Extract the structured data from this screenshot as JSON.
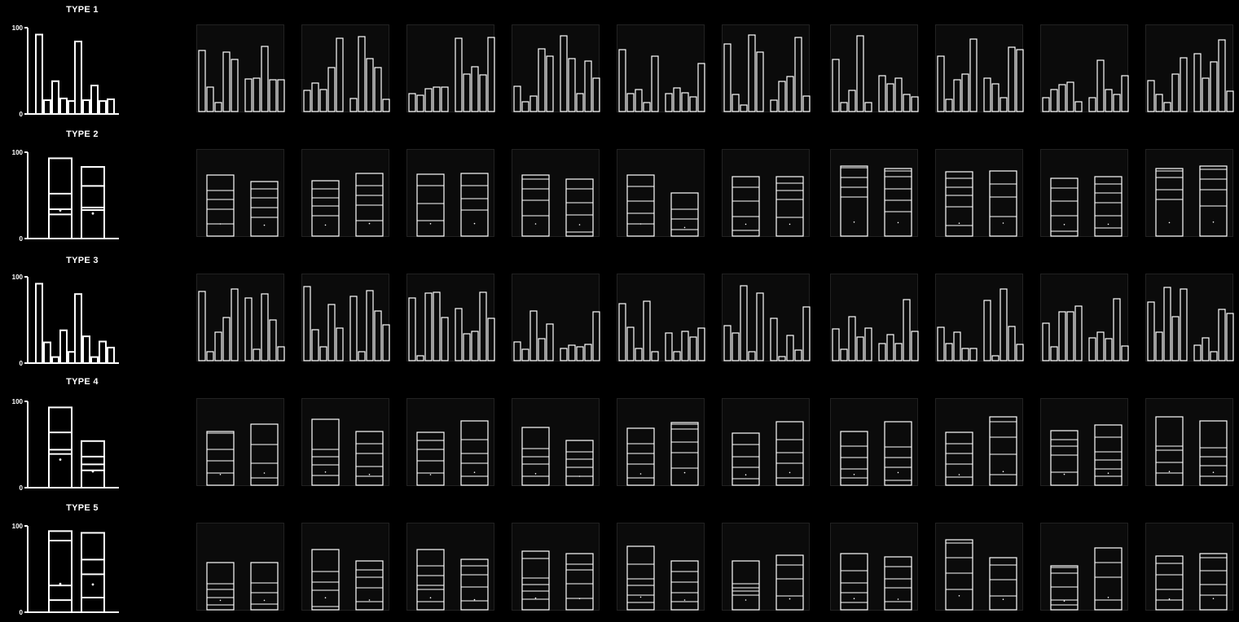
{
  "chart_data": [
    {
      "type": "bar",
      "title": "TYPE 1",
      "ylim": [
        0,
        100
      ],
      "ytick_labels": [
        "0",
        "100"
      ],
      "reference": [
        92,
        16,
        38,
        18,
        15,
        84,
        16,
        33,
        15,
        17
      ],
      "samples": [
        [
          75,
          30,
          11,
          73,
          64,
          40,
          41,
          80,
          39,
          39
        ],
        [
          26,
          35,
          27,
          54,
          90,
          16,
          92,
          65,
          54,
          15
        ],
        [
          22,
          20,
          28,
          30,
          30,
          90,
          46,
          55,
          45,
          91
        ],
        [
          31,
          12,
          19,
          77,
          68,
          93,
          65,
          22,
          62,
          41
        ],
        [
          76,
          22,
          27,
          11,
          68,
          22,
          29,
          23,
          18,
          59
        ],
        [
          83,
          21,
          8,
          94,
          73,
          14,
          37,
          43,
          91,
          19
        ],
        [
          64,
          11,
          26,
          93,
          11,
          44,
          34,
          41,
          21,
          18
        ],
        [
          68,
          15,
          39,
          46,
          89,
          41,
          34,
          17,
          79,
          76
        ],
        [
          17,
          27,
          33,
          36,
          12,
          17,
          63,
          27,
          21,
          44
        ],
        [
          38,
          21,
          11,
          46,
          66,
          71,
          41,
          61,
          88,
          25
        ]
      ]
    },
    {
      "type": "stacked-bar",
      "title": "TYPE 2",
      "ylim": [
        0,
        100
      ],
      "ytick_labels": [
        "0",
        "100"
      ],
      "reference": [
        [
          28,
          34,
          52,
          93
        ],
        [
          33,
          36,
          61,
          83
        ]
      ],
      "samples": [
        [
          [
            15,
            33,
            45,
            56,
            75
          ],
          [
            23,
            35,
            47,
            58,
            67
          ]
        ],
        [
          [
            25,
            37,
            47,
            58,
            68
          ],
          [
            19,
            38,
            50,
            62,
            77
          ]
        ],
        [
          [
            19,
            40,
            62,
            76
          ],
          [
            32,
            46,
            62,
            77
          ]
        ],
        [
          [
            25,
            44,
            58,
            70,
            75
          ],
          [
            5,
            26,
            41,
            58,
            70
          ]
        ],
        [
          [
            15,
            28,
            43,
            61,
            75
          ],
          [
            8,
            21,
            33,
            53
          ]
        ],
        [
          [
            7,
            24,
            43,
            60,
            73
          ],
          [
            23,
            45,
            56,
            65,
            73
          ]
        ],
        [
          [
            48,
            60,
            72,
            84,
            86
          ],
          [
            30,
            44,
            58,
            73,
            80,
            83
          ]
        ],
        [
          [
            13,
            36,
            50,
            60,
            71,
            79
          ],
          [
            24,
            48,
            64,
            80
          ]
        ],
        [
          [
            6,
            25,
            43,
            59,
            71
          ],
          [
            10,
            25,
            41,
            53,
            64,
            73
          ]
        ],
        [
          [
            45,
            57,
            72,
            80,
            83
          ],
          [
            37,
            57,
            70,
            82,
            86
          ]
        ]
      ]
    },
    {
      "type": "bar",
      "title": "TYPE 3",
      "ylim": [
        0,
        100
      ],
      "ytick_labels": [
        "0",
        "100"
      ],
      "reference": [
        92,
        24,
        7,
        38,
        13,
        80,
        31,
        7,
        25,
        18
      ],
      "samples": [
        [
          85,
          11,
          35,
          53,
          88,
          77,
          14,
          82,
          50,
          17
        ],
        [
          91,
          38,
          17,
          69,
          40,
          79,
          11,
          86,
          61,
          44
        ],
        [
          77,
          6,
          83,
          84,
          53,
          64,
          33,
          36,
          84,
          52
        ],
        [
          23,
          14,
          61,
          27,
          45,
          15,
          19,
          17,
          20,
          60
        ],
        [
          70,
          41,
          15,
          73,
          11,
          34,
          11,
          36,
          29,
          40
        ],
        [
          43,
          34,
          92,
          11,
          83,
          52,
          5,
          31,
          13,
          66
        ],
        [
          39,
          14,
          54,
          29,
          40,
          21,
          32,
          21,
          75,
          36
        ],
        [
          41,
          21,
          35,
          15,
          15,
          74,
          6,
          88,
          42,
          20
        ],
        [
          46,
          17,
          60,
          60,
          67,
          28,
          35,
          27,
          76,
          18
        ],
        [
          72,
          35,
          90,
          54,
          88,
          19,
          28,
          11,
          63,
          58
        ]
      ]
    },
    {
      "type": "stacked-bar",
      "title": "TYPE 4",
      "ylim": [
        0,
        100
      ],
      "ytick_labels": [
        "0",
        "100"
      ],
      "reference": [
        [
          39,
          44,
          64,
          93
        ],
        [
          20,
          27,
          36,
          54
        ]
      ],
      "samples": [
        [
          [
            15,
            30,
            44,
            64,
            66
          ],
          [
            9,
            27,
            50,
            75
          ]
        ],
        [
          [
            12,
            25,
            35,
            44,
            81
          ],
          [
            11,
            23,
            39,
            51,
            66
          ]
        ],
        [
          [
            15,
            30,
            44,
            55,
            65
          ],
          [
            11,
            27,
            39,
            56,
            79
          ]
        ],
        [
          [
            11,
            26,
            35,
            45,
            71
          ],
          [
            11,
            22,
            32,
            41,
            55
          ]
        ],
        [
          [
            9,
            26,
            39,
            51,
            70
          ],
          [
            21,
            40,
            53,
            69,
            75,
            77
          ]
        ],
        [
          [
            8,
            22,
            35,
            50,
            64
          ],
          [
            9,
            27,
            40,
            56,
            78
          ]
        ],
        [
          [
            9,
            20,
            34,
            48,
            66
          ],
          [
            6,
            22,
            34,
            47,
            78
          ]
        ],
        [
          [
            10,
            26,
            39,
            51,
            65
          ],
          [
            13,
            38,
            59,
            78,
            84
          ]
        ],
        [
          [
            16,
            37,
            48,
            56,
            67
          ],
          [
            11,
            20,
            31,
            41,
            59,
            74
          ]
        ],
        [
          [
            15,
            28,
            43,
            48,
            84
          ],
          [
            11,
            24,
            35,
            46,
            79
          ]
        ]
      ]
    },
    {
      "type": "stacked-bar",
      "title": "TYPE 5",
      "ylim": [
        0,
        100
      ],
      "ytick_labels": [
        "0",
        "100"
      ],
      "reference": [
        [
          14,
          31,
          83,
          94
        ],
        [
          17,
          44,
          61,
          92
        ]
      ],
      "samples": [
        [
          [
            6,
            15,
            25,
            32,
            58
          ],
          [
            7,
            21,
            33,
            58
          ]
        ],
        [
          [
            4,
            24,
            34,
            47,
            74
          ],
          [
            10,
            27,
            40,
            49,
            60
          ]
        ],
        [
          [
            10,
            25,
            30,
            42,
            54,
            74
          ],
          [
            11,
            28,
            43,
            54,
            62
          ]
        ],
        [
          [
            13,
            23,
            31,
            39,
            63,
            72
          ],
          [
            14,
            32,
            49,
            56,
            69
          ]
        ],
        [
          [
            9,
            18,
            30,
            38,
            56,
            78
          ],
          [
            10,
            21,
            34,
            47,
            60
          ]
        ],
        [
          [
            18,
            23,
            27,
            32,
            60
          ],
          [
            17,
            38,
            55,
            67
          ]
        ],
        [
          [
            9,
            21,
            33,
            48,
            69
          ],
          [
            10,
            27,
            38,
            53,
            65
          ]
        ],
        [
          [
            25,
            45,
            64,
            82,
            86
          ],
          [
            17,
            37,
            55,
            64
          ]
        ],
        [
          [
            6,
            12,
            28,
            45,
            52,
            54
          ],
          [
            12,
            40,
            58,
            76
          ]
        ],
        [
          [
            12,
            25,
            43,
            57,
            66
          ],
          [
            18,
            31,
            48,
            64,
            69
          ]
        ]
      ]
    }
  ]
}
